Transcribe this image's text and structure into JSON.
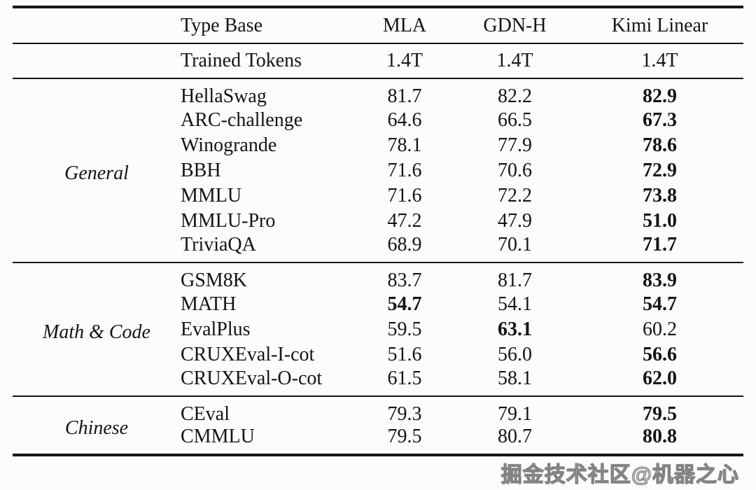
{
  "table": {
    "header": {
      "type_base": "Type Base",
      "models": [
        "MLA",
        "GDN-H",
        "Kimi Linear"
      ]
    },
    "trained_tokens": {
      "label": "Trained Tokens",
      "values": [
        {
          "text": "1.4T",
          "bold": false
        },
        {
          "text": "1.4T",
          "bold": false
        },
        {
          "text": "1.4T",
          "bold": false
        }
      ]
    },
    "sections": [
      {
        "group": "General",
        "rows": [
          {
            "name": "HellaSwag",
            "values": [
              {
                "text": "81.7",
                "bold": false
              },
              {
                "text": "82.2",
                "bold": false
              },
              {
                "text": "82.9",
                "bold": true
              }
            ]
          },
          {
            "name": "ARC-challenge",
            "values": [
              {
                "text": "64.6",
                "bold": false
              },
              {
                "text": "66.5",
                "bold": false
              },
              {
                "text": "67.3",
                "bold": true
              }
            ]
          },
          {
            "name": "Winogrande",
            "values": [
              {
                "text": "78.1",
                "bold": false
              },
              {
                "text": "77.9",
                "bold": false
              },
              {
                "text": "78.6",
                "bold": true
              }
            ]
          },
          {
            "name": "BBH",
            "values": [
              {
                "text": "71.6",
                "bold": false
              },
              {
                "text": "70.6",
                "bold": false
              },
              {
                "text": "72.9",
                "bold": true
              }
            ]
          },
          {
            "name": "MMLU",
            "values": [
              {
                "text": "71.6",
                "bold": false
              },
              {
                "text": "72.2",
                "bold": false
              },
              {
                "text": "73.8",
                "bold": true
              }
            ]
          },
          {
            "name": "MMLU-Pro",
            "values": [
              {
                "text": "47.2",
                "bold": false
              },
              {
                "text": "47.9",
                "bold": false
              },
              {
                "text": "51.0",
                "bold": true
              }
            ]
          },
          {
            "name": "TriviaQA",
            "values": [
              {
                "text": "68.9",
                "bold": false
              },
              {
                "text": "70.1",
                "bold": false
              },
              {
                "text": "71.7",
                "bold": true
              }
            ]
          }
        ]
      },
      {
        "group": "Math & Code",
        "rows": [
          {
            "name": "GSM8K",
            "values": [
              {
                "text": "83.7",
                "bold": false
              },
              {
                "text": "81.7",
                "bold": false
              },
              {
                "text": "83.9",
                "bold": true
              }
            ]
          },
          {
            "name": "MATH",
            "values": [
              {
                "text": "54.7",
                "bold": true
              },
              {
                "text": "54.1",
                "bold": false
              },
              {
                "text": "54.7",
                "bold": true
              }
            ]
          },
          {
            "name": "EvalPlus",
            "values": [
              {
                "text": "59.5",
                "bold": false
              },
              {
                "text": "63.1",
                "bold": true
              },
              {
                "text": "60.2",
                "bold": false
              }
            ]
          },
          {
            "name": "CRUXEval-I-cot",
            "values": [
              {
                "text": "51.6",
                "bold": false
              },
              {
                "text": "56.0",
                "bold": false
              },
              {
                "text": "56.6",
                "bold": true
              }
            ]
          },
          {
            "name": "CRUXEval-O-cot",
            "values": [
              {
                "text": "61.5",
                "bold": false
              },
              {
                "text": "58.1",
                "bold": false
              },
              {
                "text": "62.0",
                "bold": true
              }
            ]
          }
        ]
      },
      {
        "group": "Chinese",
        "rows": [
          {
            "name": "CEval",
            "values": [
              {
                "text": "79.3",
                "bold": false
              },
              {
                "text": "79.1",
                "bold": false
              },
              {
                "text": "79.5",
                "bold": true
              }
            ]
          },
          {
            "name": "CMMLU",
            "values": [
              {
                "text": "79.5",
                "bold": false
              },
              {
                "text": "80.7",
                "bold": false
              },
              {
                "text": "80.8",
                "bold": true
              }
            ]
          }
        ]
      }
    ]
  },
  "watermark": {
    "text": "掘金技术社区@机器之心"
  },
  "colors": {
    "background": "#fcfcfc",
    "text": "#141414",
    "rule": "#161616",
    "watermark_fill": "#d2d2d2",
    "watermark_stroke": "#7d7d7d"
  }
}
